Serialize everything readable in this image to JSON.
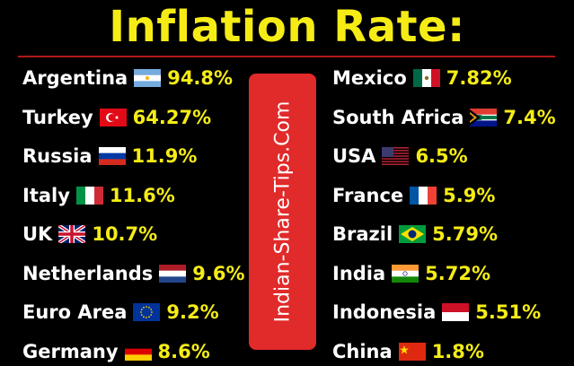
{
  "title": "Inflation Rate:",
  "watermark": "Indian-Share-Tips.Com",
  "left": [
    {
      "country": "Argentina",
      "rate": "94.8%"
    },
    {
      "country": "Turkey",
      "rate": "64.27%"
    },
    {
      "country": "Russia",
      "rate": "11.9%"
    },
    {
      "country": "Italy",
      "rate": "11.6%"
    },
    {
      "country": "UK",
      "rate": "10.7%"
    },
    {
      "country": "Netherlands",
      "rate": "9.6%"
    },
    {
      "country": "Euro Area",
      "rate": "9.2%"
    },
    {
      "country": "Germany",
      "rate": "8.6%"
    }
  ],
  "right": [
    {
      "country": "Mexico",
      "rate": "7.82%"
    },
    {
      "country": "South Africa",
      "rate": "7.4%"
    },
    {
      "country": "USA",
      "rate": "6.5%"
    },
    {
      "country": "France",
      "rate": "5.9%"
    },
    {
      "country": "Brazil",
      "rate": "5.79%"
    },
    {
      "country": "India",
      "rate": "5.72%"
    },
    {
      "country": "Indonesia",
      "rate": "5.51%"
    },
    {
      "country": "China",
      "rate": "1.8%"
    }
  ]
}
